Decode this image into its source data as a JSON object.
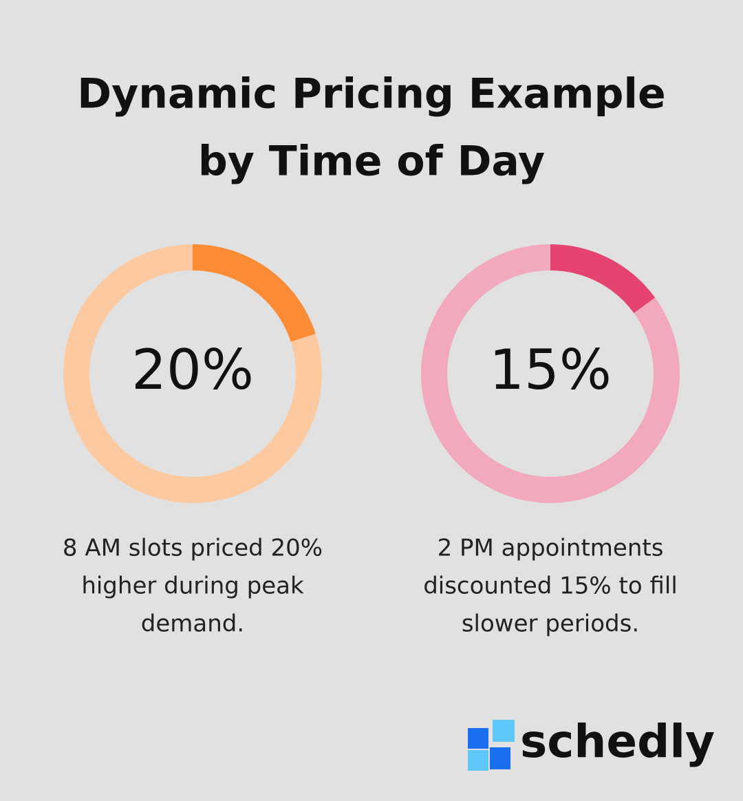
{
  "title": [
    "Dynamic Pricing Example",
    "by Time of Day"
  ],
  "chart_data": [
    {
      "type": "donut",
      "values": [
        20
      ],
      "value_labels": [
        "20%"
      ],
      "range": [
        0,
        100
      ],
      "color": "#fb8b35",
      "track_color": "#fdc9a0",
      "description": [
        "8 AM slots priced 20%",
        "higher during peak",
        "demand."
      ]
    },
    {
      "type": "donut",
      "values": [
        15
      ],
      "value_labels": [
        "15%"
      ],
      "range": [
        0,
        100
      ],
      "color": "#e4446f",
      "track_color": "#f2a8bd",
      "description": [
        "2 PM appointments",
        "discounted 15% to fill",
        "slower periods."
      ]
    }
  ],
  "logo": "schedly"
}
